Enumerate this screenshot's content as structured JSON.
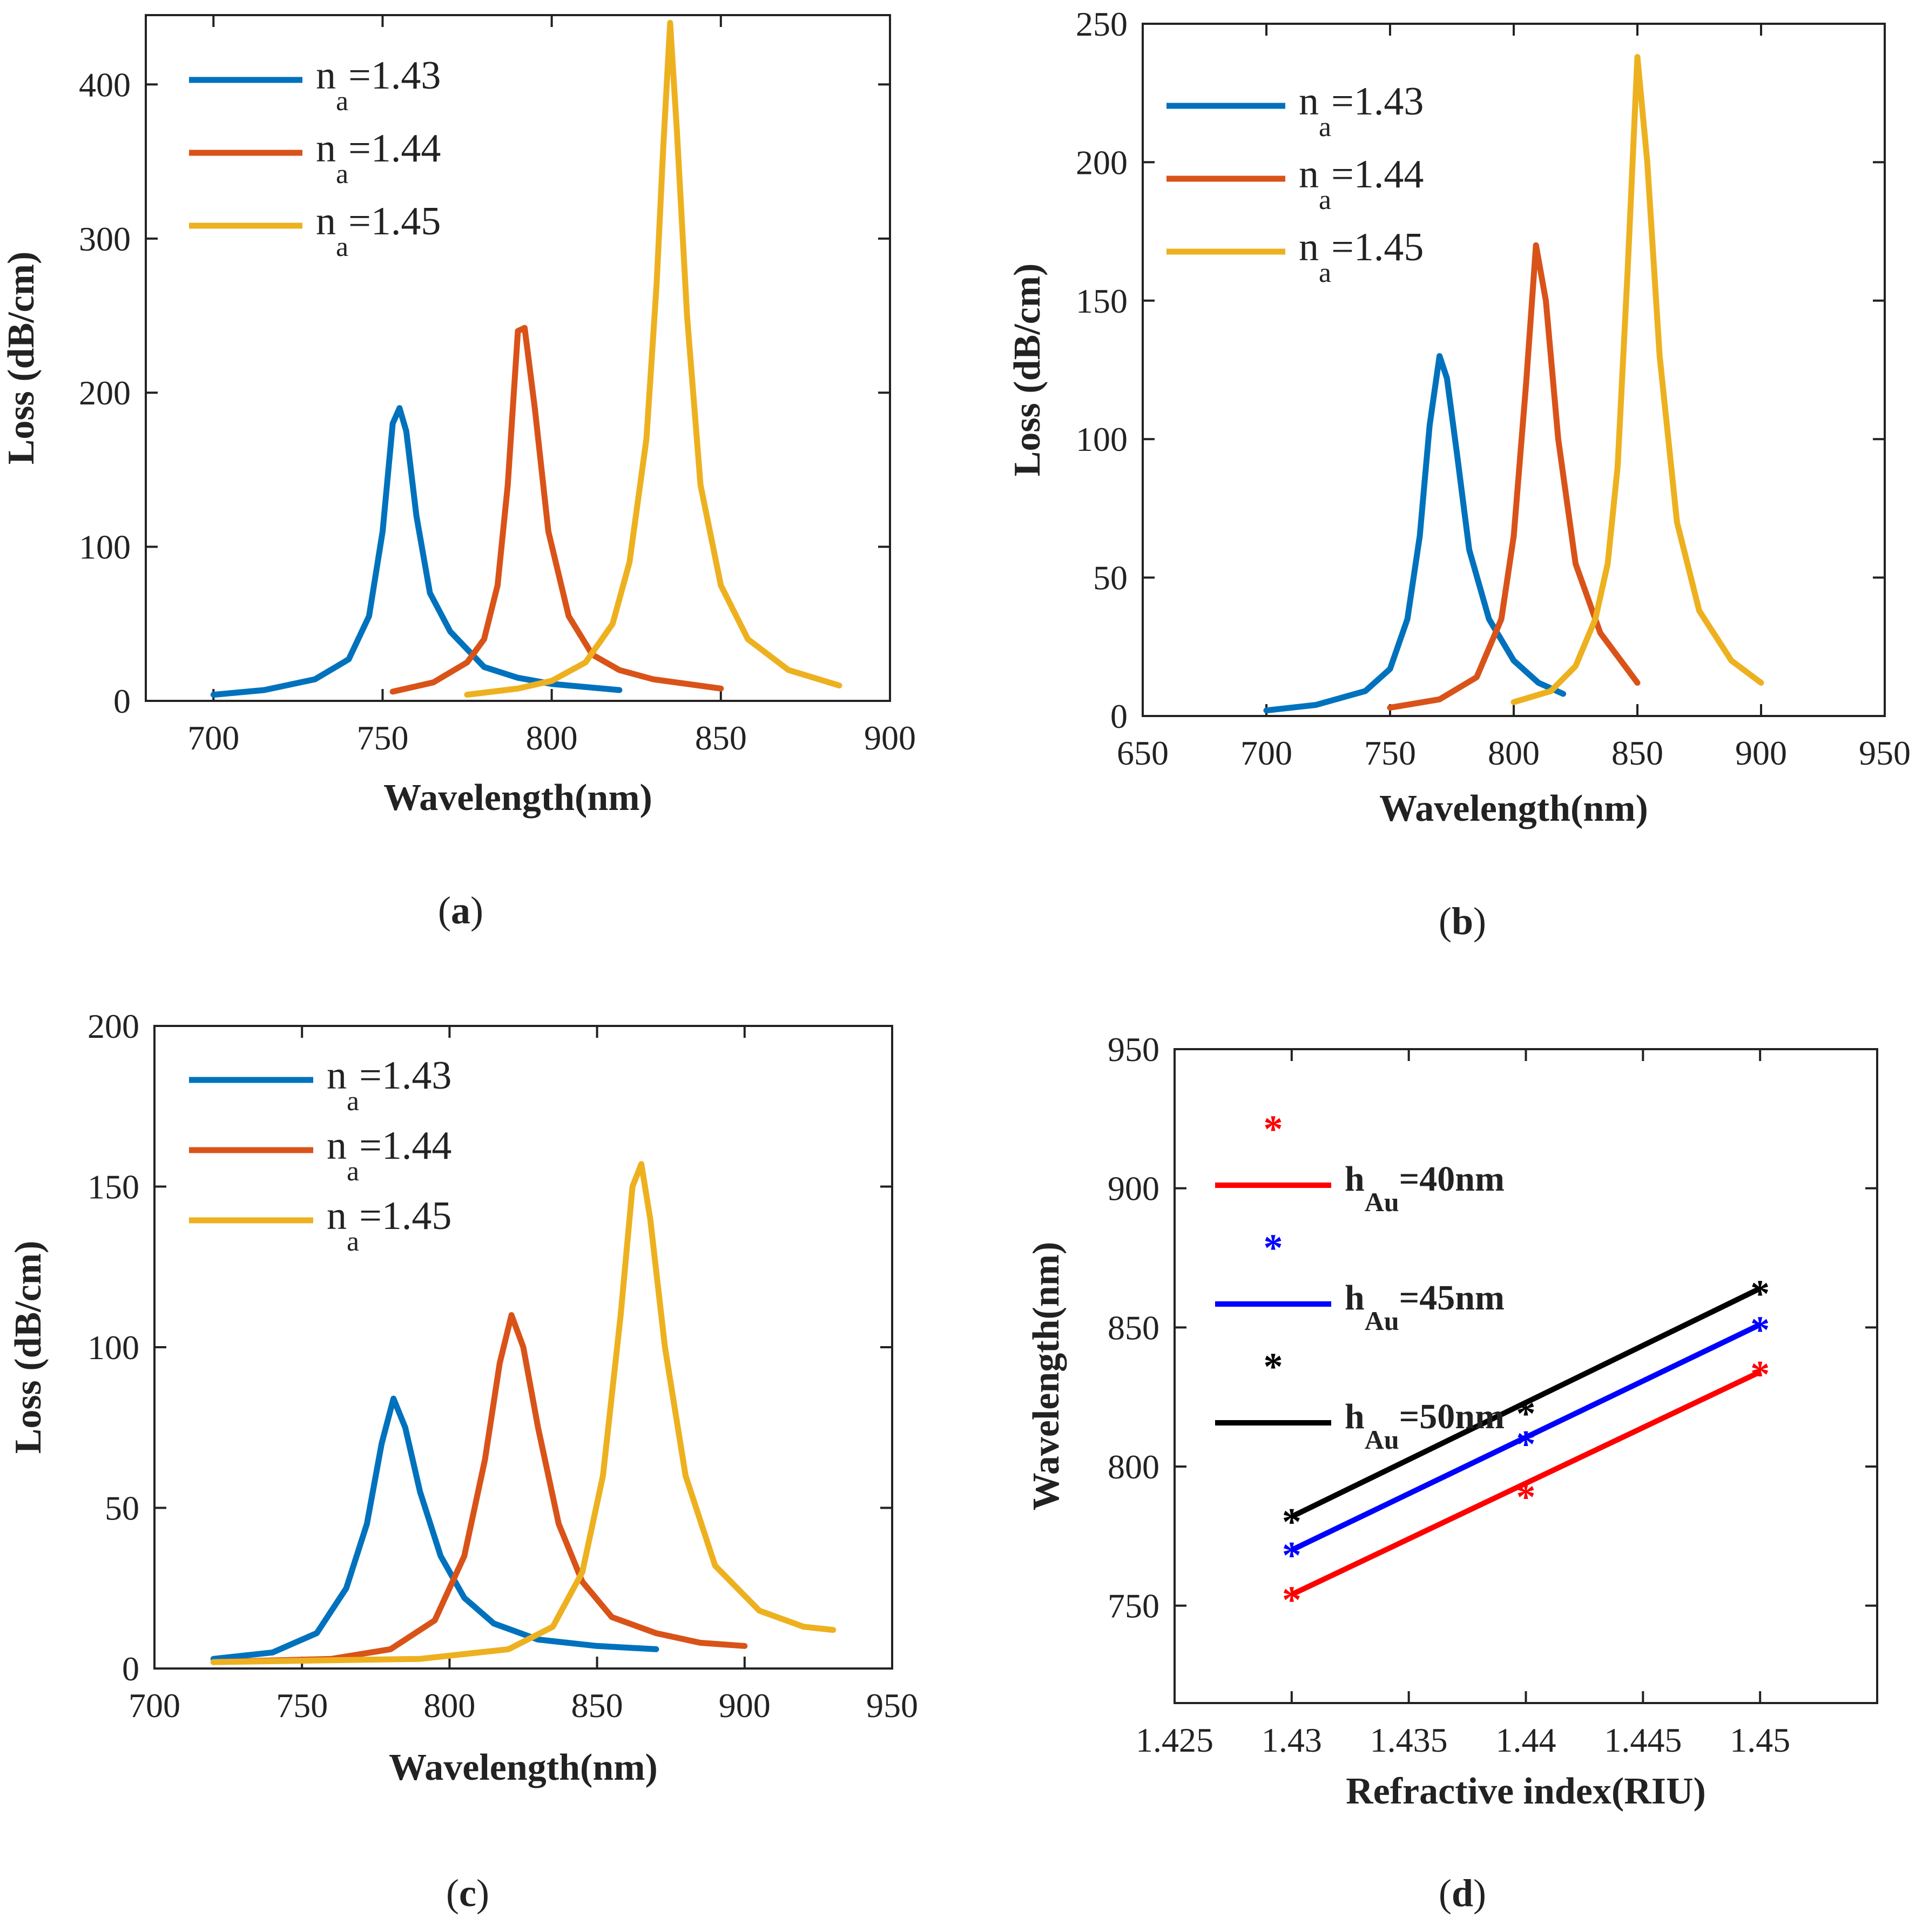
{
  "chart_data": [
    {
      "id": "a",
      "type": "line",
      "caption": "a",
      "xlabel": "Wavelength(nm)",
      "ylabel": "Loss (dB/cm)",
      "xlim": [
        680,
        900
      ],
      "ylim": [
        0,
        445
      ],
      "xticks": [
        700,
        750,
        800,
        850,
        900
      ],
      "yticks": [
        0,
        100,
        200,
        300,
        400
      ],
      "legend_position": "top-left",
      "series": [
        {
          "name": "n_a=1.43",
          "base": "n",
          "sub": "a",
          "rest": "=1.43",
          "color": "#0072BD",
          "points": [
            [
              700,
              4
            ],
            [
              715,
              7
            ],
            [
              730,
              14
            ],
            [
              740,
              27
            ],
            [
              746,
              55
            ],
            [
              750,
              110
            ],
            [
              753,
              180
            ],
            [
              755,
              190
            ],
            [
              757,
              175
            ],
            [
              760,
              120
            ],
            [
              764,
              70
            ],
            [
              770,
              45
            ],
            [
              780,
              22
            ],
            [
              790,
              15
            ],
            [
              800,
              11
            ],
            [
              810,
              9
            ],
            [
              820,
              7
            ]
          ]
        },
        {
          "name": "n_a=1.44",
          "base": "n",
          "sub": "a",
          "rest": "=1.44",
          "color": "#D95319",
          "points": [
            [
              753,
              6
            ],
            [
              765,
              12
            ],
            [
              775,
              25
            ],
            [
              780,
              40
            ],
            [
              784,
              75
            ],
            [
              787,
              140
            ],
            [
              790,
              240
            ],
            [
              792,
              242
            ],
            [
              795,
              190
            ],
            [
              799,
              110
            ],
            [
              805,
              55
            ],
            [
              812,
              30
            ],
            [
              820,
              20
            ],
            [
              830,
              14
            ],
            [
              840,
              11
            ],
            [
              850,
              8
            ]
          ]
        },
        {
          "name": "n_a=1.45",
          "base": "n",
          "sub": "a",
          "rest": "=1.45",
          "color": "#EDB120",
          "points": [
            [
              775,
              4
            ],
            [
              790,
              8
            ],
            [
              800,
              13
            ],
            [
              810,
              25
            ],
            [
              818,
              50
            ],
            [
              823,
              90
            ],
            [
              828,
              170
            ],
            [
              831,
              270
            ],
            [
              833,
              360
            ],
            [
              835,
              440
            ],
            [
              837,
              370
            ],
            [
              840,
              250
            ],
            [
              844,
              140
            ],
            [
              850,
              75
            ],
            [
              858,
              40
            ],
            [
              870,
              20
            ],
            [
              885,
              10
            ]
          ]
        }
      ]
    },
    {
      "id": "b",
      "type": "line",
      "caption": "b",
      "xlabel": "Wavelength(nm)",
      "ylabel": "Loss (dB/cm)",
      "xlim": [
        650,
        950
      ],
      "ylim": [
        0,
        250
      ],
      "xticks": [
        650,
        700,
        750,
        800,
        850,
        900,
        950
      ],
      "yticks": [
        0,
        50,
        100,
        150,
        200,
        250
      ],
      "legend_position": "top-left",
      "series": [
        {
          "name": "n_a=1.43",
          "base": "n",
          "sub": "a",
          "rest": "=1.43",
          "color": "#0072BD",
          "points": [
            [
              700,
              2
            ],
            [
              720,
              4
            ],
            [
              740,
              9
            ],
            [
              750,
              17
            ],
            [
              757,
              35
            ],
            [
              762,
              65
            ],
            [
              766,
              105
            ],
            [
              770,
              130
            ],
            [
              773,
              122
            ],
            [
              777,
              95
            ],
            [
              782,
              60
            ],
            [
              790,
              35
            ],
            [
              800,
              20
            ],
            [
              810,
              12
            ],
            [
              820,
              8
            ]
          ]
        },
        {
          "name": "n_a=1.44",
          "base": "n",
          "sub": "a",
          "rest": "=1.44",
          "color": "#D95319",
          "points": [
            [
              750,
              3
            ],
            [
              770,
              6
            ],
            [
              785,
              14
            ],
            [
              795,
              35
            ],
            [
              800,
              65
            ],
            [
              805,
              120
            ],
            [
              809,
              170
            ],
            [
              813,
              150
            ],
            [
              818,
              100
            ],
            [
              825,
              55
            ],
            [
              835,
              30
            ],
            [
              845,
              18
            ],
            [
              850,
              12
            ]
          ]
        },
        {
          "name": "n_a=1.45",
          "base": "n",
          "sub": "a",
          "rest": "=1.45",
          "color": "#EDB120",
          "points": [
            [
              800,
              5
            ],
            [
              815,
              9
            ],
            [
              825,
              18
            ],
            [
              833,
              35
            ],
            [
              838,
              55
            ],
            [
              842,
              90
            ],
            [
              846,
              160
            ],
            [
              850,
              238
            ],
            [
              854,
              200
            ],
            [
              859,
              130
            ],
            [
              866,
              70
            ],
            [
              875,
              38
            ],
            [
              888,
              20
            ],
            [
              900,
              12
            ]
          ]
        }
      ]
    },
    {
      "id": "c",
      "type": "line",
      "caption": "c",
      "xlabel": "Wavelength(nm)",
      "ylabel": "Loss (dB/cm)",
      "xlim": [
        700,
        950
      ],
      "ylim": [
        0,
        200
      ],
      "xticks": [
        700,
        750,
        800,
        850,
        900,
        950
      ],
      "yticks": [
        0,
        50,
        100,
        150,
        200
      ],
      "legend_position": "top-left",
      "series": [
        {
          "name": "n_a=1.43",
          "base": "n",
          "sub": "a",
          "rest": "=1.43",
          "color": "#0072BD",
          "points": [
            [
              720,
              3
            ],
            [
              740,
              5
            ],
            [
              755,
              11
            ],
            [
              765,
              25
            ],
            [
              772,
              45
            ],
            [
              777,
              70
            ],
            [
              781,
              84
            ],
            [
              785,
              75
            ],
            [
              790,
              55
            ],
            [
              797,
              35
            ],
            [
              805,
              22
            ],
            [
              815,
              14
            ],
            [
              830,
              9
            ],
            [
              850,
              7
            ],
            [
              870,
              6
            ]
          ]
        },
        {
          "name": "n_a=1.44",
          "base": "n",
          "sub": "a",
          "rest": "=1.44",
          "color": "#D95319",
          "points": [
            [
              720,
              2
            ],
            [
              760,
              3
            ],
            [
              780,
              6
            ],
            [
              795,
              15
            ],
            [
              805,
              35
            ],
            [
              812,
              65
            ],
            [
              817,
              95
            ],
            [
              821,
              110
            ],
            [
              825,
              100
            ],
            [
              830,
              75
            ],
            [
              837,
              45
            ],
            [
              845,
              27
            ],
            [
              855,
              16
            ],
            [
              870,
              11
            ],
            [
              885,
              8
            ],
            [
              900,
              7
            ]
          ]
        },
        {
          "name": "n_a=1.45",
          "base": "n",
          "sub": "a",
          "rest": "=1.45",
          "color": "#EDB120",
          "points": [
            [
              720,
              2
            ],
            [
              790,
              3
            ],
            [
              820,
              6
            ],
            [
              835,
              13
            ],
            [
              845,
              30
            ],
            [
              852,
              60
            ],
            [
              858,
              110
            ],
            [
              862,
              150
            ],
            [
              865,
              157
            ],
            [
              868,
              140
            ],
            [
              873,
              100
            ],
            [
              880,
              60
            ],
            [
              890,
              32
            ],
            [
              905,
              18
            ],
            [
              920,
              13
            ],
            [
              930,
              12
            ]
          ]
        }
      ]
    },
    {
      "id": "d",
      "type": "scatter",
      "caption": "d",
      "xlabel": "Refractive index(RIU)",
      "ylabel": "Wavelength(nm)",
      "xlim": [
        1.425,
        1.455
      ],
      "ylim": [
        715,
        950
      ],
      "xticks": [
        "1.425",
        "1.43",
        "1.435",
        "1.44",
        "1.445",
        "1.45"
      ],
      "yticks": [
        "750",
        "800",
        "850",
        "900",
        "950"
      ],
      "legend_position": "top-left",
      "series": [
        {
          "name": "h_Au=40nm",
          "base": "h",
          "sub": "Au",
          "rest": "=40nm",
          "color": "#FF0000",
          "x": [
            1.43,
            1.44,
            1.45
          ],
          "y": [
            754,
            791,
            835
          ],
          "fit": [
            754,
            834
          ]
        },
        {
          "name": "h_Au=45nm",
          "base": "h",
          "sub": "Au",
          "rest": "=45nm",
          "color": "#0000FF",
          "x": [
            1.43,
            1.44,
            1.45
          ],
          "y": [
            770,
            810,
            851
          ],
          "fit": [
            770,
            851
          ]
        },
        {
          "name": "h_Au=50nm",
          "base": "h",
          "sub": "Au",
          "rest": "=50nm",
          "color": "#000000",
          "x": [
            1.43,
            1.44,
            1.45
          ],
          "y": [
            782,
            821,
            864
          ],
          "fit": [
            782,
            864
          ]
        }
      ]
    }
  ]
}
